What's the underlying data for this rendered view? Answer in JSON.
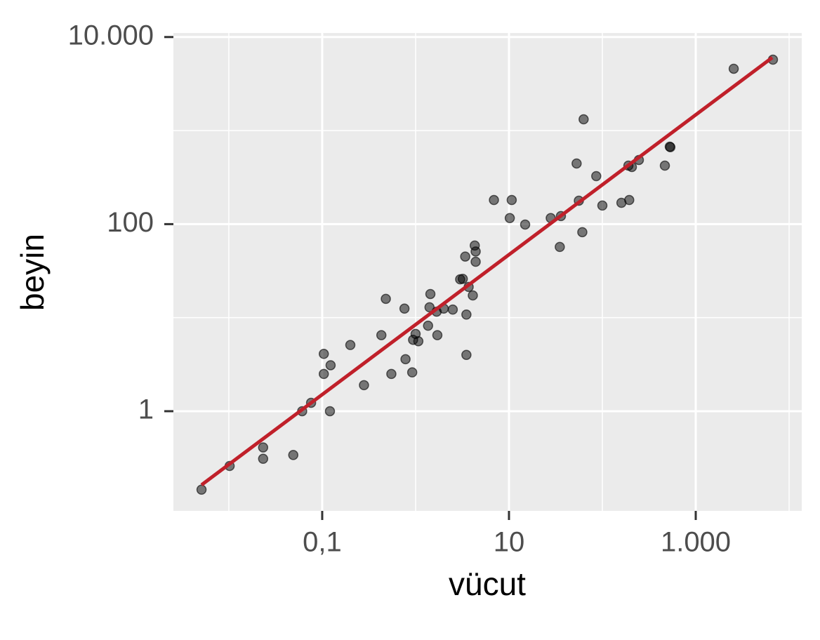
{
  "chart_data": {
    "type": "scatter",
    "x_title": "vücut",
    "y_title": "beyin",
    "x": [
      0.0051,
      0.0102,
      0.0233,
      0.0233,
      0.049,
      0.061,
      0.076,
      0.121,
      0.104,
      0.104,
      0.123,
      0.2,
      0.28,
      0.43,
      0.48,
      0.55,
      0.76,
      0.78,
      0.92,
      0.94,
      1.0,
      1.07,
      1.36,
      1.41,
      1.44,
      1.71,
      1.68,
      2.0,
      2.5,
      3.0,
      3.2,
      3.4,
      3.5,
      3.5,
      3.7,
      4.1,
      4.3,
      4.4,
      4.4,
      6.9,
      10.2,
      10.7,
      14.9,
      28,
      35,
      36,
      53,
      56,
      61,
      63,
      86,
      100,
      160,
      190,
      194,
      207,
      246,
      467,
      527,
      535,
      2550,
      6710
    ],
    "y": [
      0.145,
      0.26,
      0.41,
      0.31,
      0.34,
      1.0,
      1.23,
      1.0,
      4.1,
      2.5,
      3.1,
      5.1,
      1.9,
      6.5,
      15.9,
      2.5,
      12.5,
      3.6,
      2.6,
      5.8,
      6.7,
      5.6,
      8.2,
      12.9,
      17.9,
      6.5,
      11.6,
      12.5,
      12.2,
      25.7,
      26,
      45,
      10.8,
      4.0,
      21.3,
      17.3,
      59,
      51,
      39.6,
      181,
      116,
      181,
      99,
      116,
      57,
      122,
      445,
      178,
      82,
      1320,
      326,
      158,
      169,
      422,
      181,
      408,
      485,
      422,
      673,
      665,
      4580,
      5730
    ],
    "color": "#000000",
    "trend_line": {
      "x": [
        0.0051,
        6600
      ],
      "y": [
        0.163,
        6040
      ],
      "color": "#c0202a"
    },
    "x_log": true,
    "y_log": true,
    "xlim": [
      0.00255,
      13650
    ],
    "ylim": [
      0.086,
      11050
    ],
    "xticks": [
      {
        "value": 0.1,
        "label": "0,1"
      },
      10,
      {
        "value": 1000,
        "label": "1.000"
      }
    ],
    "yticks": [
      1,
      100,
      {
        "value": 10000,
        "label": "10.000"
      }
    ],
    "x_minor_grid": [
      0.01,
      1,
      100,
      10000
    ],
    "y_minor_grid": [
      0.01,
      10,
      1000
    ],
    "grid": true
  }
}
